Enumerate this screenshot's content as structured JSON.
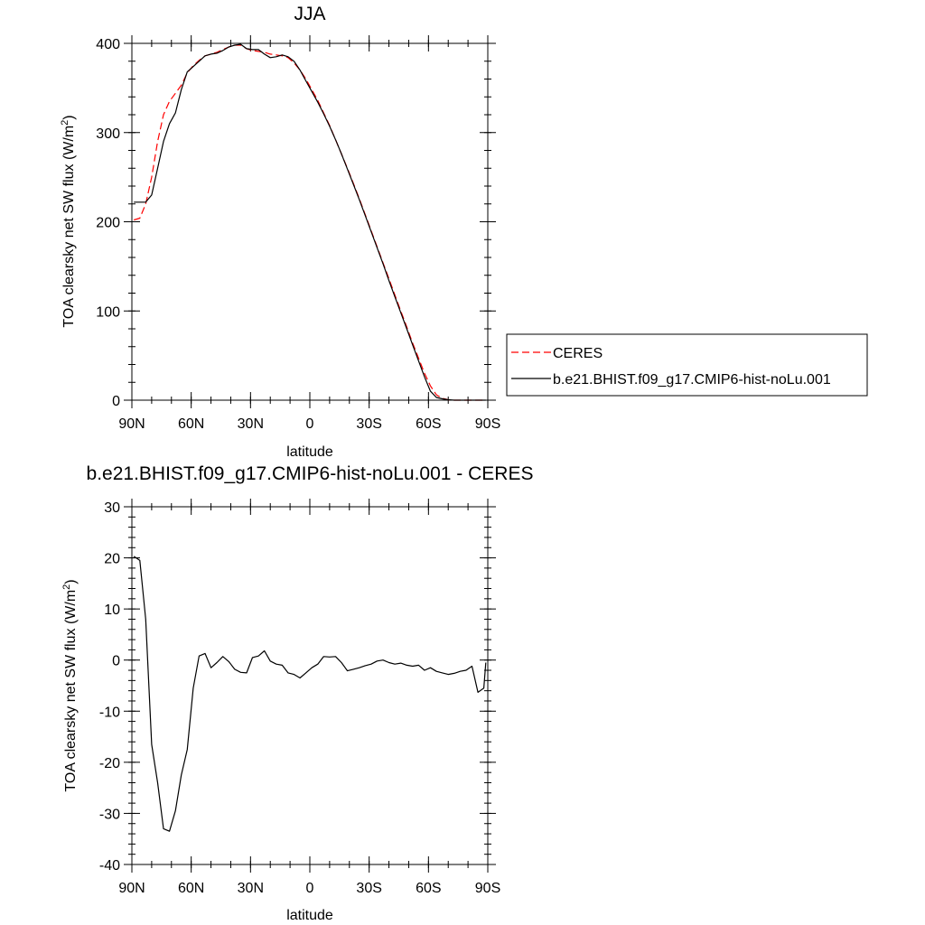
{
  "chart_data": [
    {
      "type": "line",
      "title": "JJA",
      "xlabel": "latitude",
      "ylabel_main": "TOA clearsky net SW flux (W/m",
      "ylabel_sup": "2",
      "ylabel_end": ")",
      "xlim": [
        90,
        -90
      ],
      "ylim": [
        0,
        400
      ],
      "xticks": [
        90,
        60,
        30,
        0,
        -30,
        -60,
        -90
      ],
      "xtick_labels": [
        "90N",
        "60N",
        "30N",
        "0",
        "30S",
        "60S",
        "90S"
      ],
      "yticks": [
        0,
        100,
        200,
        300,
        400
      ],
      "ytick_labels": [
        "0",
        "100",
        "200",
        "300",
        "400"
      ],
      "legend_position": "right",
      "series": [
        {
          "name": "CERES",
          "color": "#ff0000",
          "dash": true,
          "x": [
            89,
            86,
            83,
            80,
            77,
            74,
            71,
            68,
            65,
            62,
            59,
            56,
            53,
            50,
            47,
            44,
            41,
            38,
            35,
            32,
            29,
            26,
            23,
            20,
            17,
            14,
            11,
            8,
            5,
            2,
            -1,
            -4,
            -7,
            -10,
            -13,
            -16,
            -19,
            -22,
            -25,
            -28,
            -31,
            -34,
            -37,
            -40,
            -43,
            -46,
            -49,
            -52,
            -55,
            -58,
            -61,
            -64,
            -67,
            -70,
            -73,
            -76,
            -79,
            -82,
            -85,
            -88,
            -89
          ],
          "y": [
            202,
            204,
            220,
            250,
            290,
            320,
            335,
            344,
            353,
            367,
            375,
            381,
            386,
            388,
            390,
            393,
            396,
            398,
            398,
            394,
            392,
            391,
            390,
            388,
            387,
            386,
            384,
            378,
            370,
            360,
            348,
            336,
            322,
            308,
            292,
            276,
            260,
            243,
            226,
            208,
            190,
            172,
            154,
            136,
            118,
            100,
            82,
            64,
            47,
            30,
            16,
            6,
            2,
            0.5,
            0,
            0,
            0,
            0,
            0,
            0,
            0
          ]
        },
        {
          "name": "b.e21.BHIST.f09_g17.CMIP6-hist-noLu.001",
          "color": "#000000",
          "dash": false,
          "x": [
            89,
            86,
            83,
            80,
            77,
            74,
            71,
            68,
            65,
            62,
            59,
            56,
            53,
            50,
            47,
            44,
            41,
            38,
            35,
            32,
            29,
            26,
            23,
            20,
            17,
            14,
            11,
            8,
            5,
            2,
            -1,
            -4,
            -7,
            -10,
            -13,
            -16,
            -19,
            -22,
            -25,
            -28,
            -31,
            -34,
            -37,
            -40,
            -43,
            -46,
            -49,
            -52,
            -55,
            -58,
            -61,
            -64,
            -67,
            -70,
            -73,
            -76,
            -79,
            -82,
            -85,
            -88,
            -89
          ],
          "y": [
            222,
            222,
            222,
            230,
            260,
            290,
            310,
            322,
            348,
            368,
            374,
            380,
            386,
            388,
            389,
            392,
            396,
            398,
            399,
            394,
            393,
            393,
            388,
            384,
            385,
            387,
            385,
            380,
            370,
            358,
            346,
            334,
            321,
            307,
            292,
            276,
            259,
            242,
            225,
            207,
            189,
            171,
            153,
            134,
            116,
            98,
            80,
            62,
            44,
            26,
            10,
            3,
            1.5,
            0.5,
            0,
            0,
            0,
            0,
            0,
            0,
            0
          ]
        }
      ]
    },
    {
      "type": "line",
      "title": "b.e21.BHIST.f09_g17.CMIP6-hist-noLu.001 - CERES",
      "xlabel": "latitude",
      "ylabel_main": "TOA clearsky net SW flux (W/m",
      "ylabel_sup": "2",
      "ylabel_end": ")",
      "xlim": [
        90,
        -90
      ],
      "ylim": [
        -40,
        30
      ],
      "xticks": [
        90,
        60,
        30,
        0,
        -30,
        -60,
        -90
      ],
      "xtick_labels": [
        "90N",
        "60N",
        "30N",
        "0",
        "30S",
        "60S",
        "90S"
      ],
      "yticks": [
        -40,
        -30,
        -20,
        -10,
        0,
        10,
        20,
        30
      ],
      "ytick_labels": [
        "-40",
        "-30",
        "-20",
        "-10",
        "0",
        "10",
        "20",
        "30"
      ],
      "series": [
        {
          "color": "#000000",
          "dash": false,
          "x": [
            89,
            86,
            83,
            80,
            77,
            74,
            71,
            68,
            65,
            62,
            59,
            56,
            53,
            50,
            47,
            44,
            41,
            38,
            35,
            32,
            29,
            26,
            23,
            20,
            17,
            14,
            11,
            8,
            5,
            2,
            -1,
            -4,
            -7,
            -10,
            -13,
            -16,
            -19,
            -22,
            -25,
            -28,
            -31,
            -34,
            -37,
            -40,
            -43,
            -46,
            -49,
            -52,
            -55,
            -58,
            -61,
            -64,
            -67,
            -70,
            -73,
            -76,
            -79,
            -82,
            -85,
            -88,
            -89
          ],
          "y": [
            20.3,
            19.5,
            8,
            -16.5,
            -24,
            -33,
            -33.5,
            -29.5,
            -22.5,
            -17.5,
            -5.5,
            0.8,
            1.3,
            -1.5,
            -0.5,
            0.7,
            -0.3,
            -1.8,
            -2.4,
            -2.5,
            0.5,
            0.8,
            1.8,
            -0.2,
            -0.8,
            -1.0,
            -2.5,
            -2.8,
            -3.5,
            -2.5,
            -1.5,
            -0.8,
            0.7,
            0.6,
            0.7,
            -0.5,
            -2.1,
            -1.8,
            -1.5,
            -1.1,
            -0.8,
            -0.2,
            0.0,
            -0.5,
            -0.8,
            -0.6,
            -1.0,
            -1.2,
            -1.0,
            -2.0,
            -1.5,
            -2.2,
            -2.5,
            -2.8,
            -2.6,
            -2.2,
            -2.0,
            -1.2,
            -6.3,
            -5.5,
            -0.5
          ]
        }
      ]
    }
  ]
}
